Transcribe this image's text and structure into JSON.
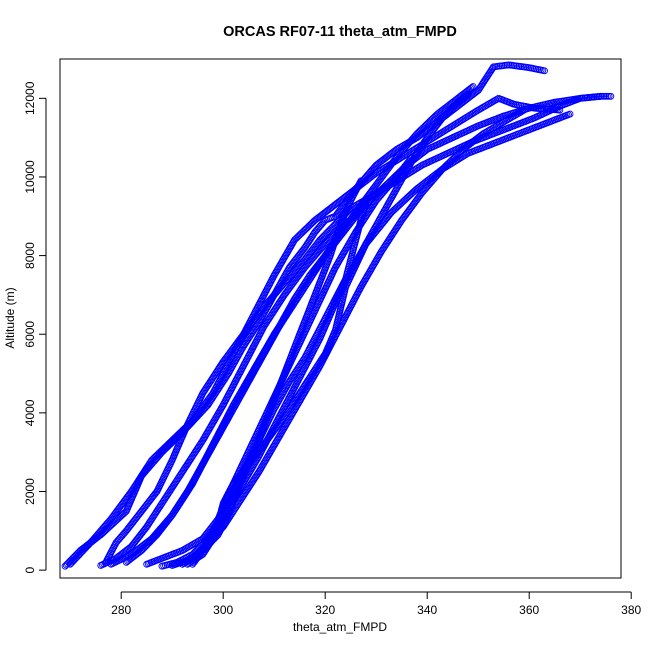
{
  "chart_data": {
    "type": "scatter",
    "title": "ORCAS RF07-11 theta_atm_FMPD",
    "xlabel": "theta_atm_FMPD",
    "ylabel": "Altitude (m)",
    "xlim": [
      268,
      378
    ],
    "ylim": [
      -200,
      13000
    ],
    "x_ticks": [
      280,
      300,
      320,
      340,
      360,
      380
    ],
    "y_ticks": [
      0,
      2000,
      4000,
      6000,
      8000,
      10000,
      12000
    ],
    "grid": false,
    "legend": "none",
    "marker": "open-circle",
    "color": "#0000ff",
    "series": [
      {
        "x": [
          269,
          272,
          276,
          281,
          284,
          288,
          292,
          297,
          301,
          304,
          307,
          310,
          313,
          316,
          318,
          320,
          322,
          326,
          330,
          334,
          338,
          342,
          346,
          350,
          353,
          356,
          360,
          363
        ],
        "y": [
          100,
          500,
          900,
          1500,
          2400,
          3000,
          3500,
          4200,
          5000,
          5700,
          6300,
          7000,
          7700,
          8200,
          8600,
          8900,
          9000,
          9700,
          10300,
          10700,
          11000,
          11400,
          11800,
          12200,
          12800,
          12850,
          12780,
          12700
        ]
      },
      {
        "x": [
          270,
          274,
          278,
          282,
          286,
          290,
          294,
          298,
          302,
          306,
          310,
          314,
          318,
          322,
          326,
          330,
          335,
          340,
          345,
          350,
          354,
          357,
          361,
          366
        ],
        "y": [
          150,
          700,
          1300,
          2000,
          2800,
          3300,
          3800,
          4500,
          5500,
          6500,
          7500,
          8400,
          8900,
          9300,
          9700,
          10100,
          10500,
          10900,
          11300,
          11700,
          12000,
          11850,
          11750,
          11700
        ]
      },
      {
        "x": [
          277,
          279,
          281,
          284,
          287,
          290,
          293,
          296,
          300,
          304,
          308,
          312,
          316,
          319,
          322,
          325,
          329,
          334,
          339,
          344,
          349,
          355,
          361,
          366,
          370,
          374,
          376
        ],
        "y": [
          200,
          700,
          1000,
          1500,
          2000,
          2800,
          3700,
          4500,
          5300,
          6000,
          6700,
          7300,
          7900,
          8400,
          8800,
          9200,
          9500,
          9900,
          10300,
          10600,
          10900,
          11200,
          11500,
          11800,
          12000,
          12050,
          12050
        ]
      },
      {
        "x": [
          276,
          279,
          282,
          285,
          288,
          292,
          296,
          300,
          304,
          308,
          312,
          316,
          320,
          324,
          328,
          332,
          336,
          340,
          345,
          350,
          355,
          360,
          365,
          370,
          374
        ],
        "y": [
          120,
          300,
          600,
          1100,
          1700,
          2500,
          3300,
          4200,
          5200,
          6200,
          7000,
          7700,
          8300,
          8800,
          9300,
          9800,
          10300,
          10700,
          11000,
          11300,
          11550,
          11750,
          11900,
          12000,
          12050
        ]
      },
      {
        "x": [
          278,
          282,
          286,
          290,
          294,
          298,
          302,
          306,
          310,
          314,
          318,
          322,
          326,
          330,
          334,
          338,
          342,
          346,
          349
        ],
        "y": [
          150,
          400,
          800,
          1400,
          2200,
          3200,
          4200,
          5100,
          6000,
          6800,
          7600,
          8400,
          9100,
          9800,
          10500,
          11100,
          11600,
          12000,
          12300
        ]
      },
      {
        "x": [
          285,
          288,
          292,
          296,
          299,
          302,
          306,
          310,
          314,
          318,
          322,
          326,
          330,
          334,
          337
        ],
        "y": [
          150,
          300,
          500,
          800,
          1300,
          2200,
          3300,
          4400,
          5500,
          6600,
          7700,
          8600,
          9400,
          10000,
          10500
        ]
      },
      {
        "x": [
          290,
          293,
          296,
          299,
          301,
          303,
          306,
          309,
          312,
          315,
          318,
          321,
          323,
          325,
          327
        ],
        "y": [
          120,
          250,
          500,
          900,
          1400,
          2100,
          3000,
          4000,
          5000,
          6000,
          7000,
          8000,
          8800,
          9400,
          9900
        ]
      },
      {
        "x": [
          293,
          296,
          298,
          299,
          300,
          302,
          305,
          308,
          312,
          316,
          320,
          322,
          324,
          328,
          333,
          338,
          343,
          348,
          352,
          356,
          360,
          364,
          368
        ],
        "y": [
          150,
          400,
          800,
          1200,
          1700,
          2200,
          2700,
          3200,
          3900,
          4700,
          5500,
          6100,
          7200,
          8300,
          9100,
          9700,
          10200,
          10600,
          10800,
          11000,
          11200,
          11400,
          11600
        ]
      },
      {
        "x": [
          288,
          291,
          294,
          297,
          300,
          303,
          307,
          311,
          315,
          319,
          322,
          325,
          328,
          331,
          334,
          337,
          340,
          343,
          346,
          348
        ],
        "y": [
          100,
          200,
          400,
          800,
          1300,
          2000,
          2900,
          3900,
          4900,
          5900,
          6800,
          7600,
          8300,
          9000,
          9700,
          10400,
          11000,
          11500,
          11900,
          12100
        ]
      },
      {
        "x": [
          281,
          284,
          287,
          290,
          293,
          296,
          299,
          302,
          305,
          308,
          311,
          314,
          317,
          320,
          323,
          326,
          328
        ],
        "y": [
          200,
          500,
          900,
          1400,
          2000,
          2700,
          3400,
          4100,
          4800,
          5500,
          6200,
          6900,
          7500,
          8000,
          8500,
          9000,
          9400
        ]
      },
      {
        "x": [
          294,
          296,
          298,
          301,
          304,
          307,
          310,
          313,
          316,
          318,
          320,
          322,
          324,
          325,
          326,
          327,
          328
        ],
        "y": [
          150,
          500,
          1000,
          1700,
          2500,
          3300,
          4100,
          4800,
          5400,
          5900,
          6400,
          6900,
          7400,
          7900,
          8400,
          8900,
          9300
        ]
      },
      {
        "x": [
          292,
          295,
          297,
          300,
          303,
          307,
          311,
          315,
          319,
          323,
          327,
          331,
          335,
          339,
          343,
          347,
          351,
          355,
          359
        ],
        "y": [
          150,
          400,
          700,
          1100,
          1700,
          2500,
          3400,
          4300,
          5200,
          6200,
          7200,
          8100,
          8900,
          9600,
          10200,
          10700,
          11100,
          11400,
          11700
        ]
      }
    ]
  }
}
